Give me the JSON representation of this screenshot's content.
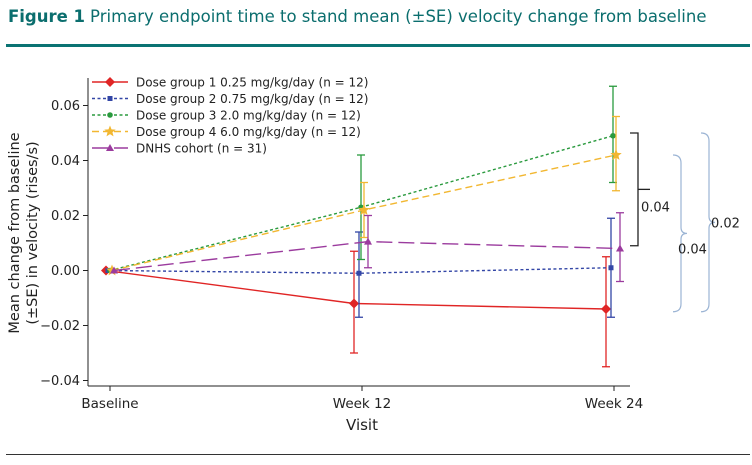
{
  "figure": {
    "label": "Figure 1",
    "title": "Primary endpoint time to stand mean (±SE) velocity change from baseline"
  },
  "chart_data": {
    "type": "line",
    "xlabel": "Visit",
    "ylabel_line1": "Mean change from baseline",
    "ylabel_line2": "(±SE) in velocity (rises/s)",
    "categories": [
      "Baseline",
      "Week 12",
      "Week 24"
    ],
    "ylim": [
      -0.042,
      0.07
    ],
    "yticks": [
      -0.04,
      -0.02,
      0.0,
      0.02,
      0.04,
      0.06
    ],
    "ytick_labels": [
      "−0.04",
      "−0.02",
      "0.00",
      "0.02",
      "0.04",
      "0.06"
    ],
    "legend_position": "top-left",
    "grid": false,
    "series": [
      {
        "name": "Dose group 1 0.25 mg/kg/day (n = 12)",
        "color": "#e02525",
        "dash": "solid",
        "marker": "diamond",
        "values": [
          0.0,
          -0.012,
          -0.014
        ],
        "lower": [
          null,
          -0.03,
          -0.035
        ],
        "upper": [
          null,
          0.007,
          0.005
        ]
      },
      {
        "name": "Dose group 2 0.75 mg/kg/day (n = 12)",
        "color": "#3346a6",
        "dash": "dotted",
        "marker": "square",
        "values": [
          0.0,
          -0.001,
          0.001
        ],
        "lower": [
          null,
          -0.017,
          -0.017
        ],
        "upper": [
          null,
          0.014,
          0.019
        ]
      },
      {
        "name": "Dose group 3 2.0 mg/kg/day (n = 12)",
        "color": "#2a9a3e",
        "dash": "dotted",
        "marker": "circle",
        "values": [
          0.0,
          0.023,
          0.049
        ],
        "lower": [
          null,
          0.004,
          0.032
        ],
        "upper": [
          null,
          0.042,
          0.067
        ]
      },
      {
        "name": "Dose group 4 6.0 mg/kg/day (n = 12)",
        "color": "#f2b731",
        "dash": "dashed",
        "marker": "star",
        "values": [
          0.0,
          0.022,
          0.042
        ],
        "lower": [
          null,
          0.012,
          0.029
        ],
        "upper": [
          null,
          0.032,
          0.056
        ]
      },
      {
        "name": "DNHS cohort (n = 31)",
        "color": "#9b3b9e",
        "dash": "longdash",
        "marker": "triangle",
        "values": [
          0.0,
          0.0105,
          0.008
        ],
        "lower": [
          null,
          0.001,
          -0.004
        ],
        "upper": [
          null,
          0.02,
          0.021
        ]
      }
    ],
    "annotations": [
      {
        "text": "0.04",
        "style": "bracket",
        "color": "#222222",
        "y_top": 0.05,
        "y_bottom": 0.009
      },
      {
        "text": "0.04",
        "style": "brace",
        "color": "#9bb4d4",
        "y_top": 0.042,
        "y_bottom": -0.015
      },
      {
        "text": "0.02",
        "style": "brace",
        "color": "#9bb4d4",
        "y_top": 0.05,
        "y_bottom": -0.015
      }
    ]
  }
}
